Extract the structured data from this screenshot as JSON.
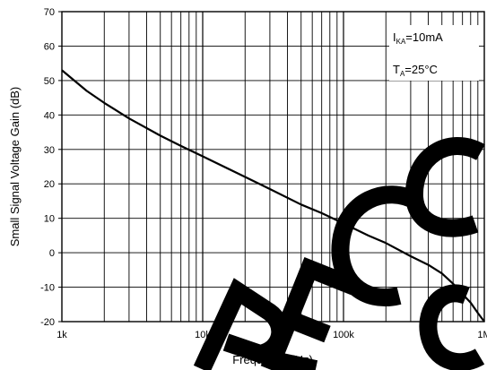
{
  "chart_data": {
    "type": "line",
    "xlabel": "Frequency (Hz)",
    "ylabel": "Small Signal Voltage Gain (dB)",
    "x_scale": "log",
    "xlim": [
      1000,
      1000000
    ],
    "ylim": [
      -20,
      70
    ],
    "x_ticks": [
      {
        "value": 1000,
        "label": "1k"
      },
      {
        "value": 10000,
        "label": "10k"
      },
      {
        "value": 100000,
        "label": "100k"
      },
      {
        "value": 1000000,
        "label": "1M"
      }
    ],
    "y_ticks": [
      {
        "value": -20,
        "label": "-20"
      },
      {
        "value": -10,
        "label": "-10"
      },
      {
        "value": 0,
        "label": "0"
      },
      {
        "value": 10,
        "label": "10"
      },
      {
        "value": 20,
        "label": "20"
      },
      {
        "value": 30,
        "label": "30"
      },
      {
        "value": 40,
        "label": "40"
      },
      {
        "value": 50,
        "label": "50"
      },
      {
        "value": 60,
        "label": "60"
      },
      {
        "value": 70,
        "label": "70"
      }
    ],
    "grid": true,
    "series": [
      {
        "color": "#000000",
        "x": [
          1000,
          1500,
          2000,
          3000,
          5000,
          7000,
          10000,
          20000,
          30000,
          50000,
          70000,
          100000,
          150000,
          200000,
          300000,
          400000,
          500000,
          600000,
          700000,
          800000,
          900000,
          1000000
        ],
        "y": [
          53,
          47,
          43.5,
          39,
          34,
          31,
          28,
          22,
          18.5,
          14,
          11.5,
          8.5,
          5,
          2.8,
          -1,
          -3.5,
          -6,
          -9,
          -12,
          -14.5,
          -17.5,
          -20
        ]
      }
    ],
    "annotations": [
      {
        "main": "I",
        "sub": "KA",
        "rest": "=10mA"
      },
      {
        "main": "T",
        "sub": "A",
        "rest": "=25°C"
      }
    ]
  },
  "watermark": {
    "text": "PRECOM",
    "color": "#000000"
  }
}
